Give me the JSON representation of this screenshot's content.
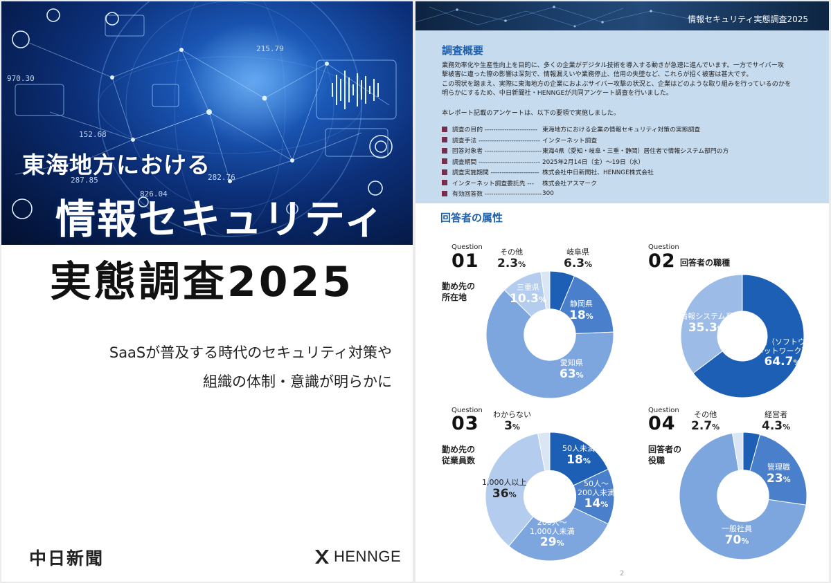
{
  "cover": {
    "title_line1": "東海地方における",
    "title_line2": "情報セキュリティ",
    "title_line3": "実態調査2025",
    "subtitle_line1": "SaaSが普及する時代のセキュリティ対策や",
    "subtitle_line2": "組織の体制・意識が明らかに",
    "publisher1": "中日新聞",
    "publisher2": "HENNGE",
    "bg_numbers": [
      "970.30",
      "287.85",
      "826.04",
      "215.79",
      "282.76",
      "152.68"
    ]
  },
  "page2": {
    "header_title": "情報セキュリティ実態調査2025",
    "summary_heading": "調査概要",
    "summary_lines": [
      "業務効率化や生産性向上を目的に、多くの企業がデジタル技術を導入する動きが急速に進んでいます。一方でサイバー攻",
      "撃被害に遭った際の影響は深刻で、情報漏えいや業務停止、信用の失墜など、これらが招く被害は甚大です。",
      "この現状を踏まえ、実際に東海地方の企業におよぶサイバー攻撃の状況と、企業はどのような取り組みを行っているのかを",
      "明らかにするため、中日新聞社・HENNGEが共同アンケート調査を行いました。"
    ],
    "summary_lead": "本レポート記載のアンケートは、以下の要領で実施しました。",
    "summary_items": [
      {
        "label": "調査の目的 ------------------------",
        "value": "東海地方における企業の情報セキュリティ対策の実態調査"
      },
      {
        "label": "調査手法 ----------------------------",
        "value": "インターネット調査"
      },
      {
        "label": "回答対象者 --------------------------",
        "value": "東海4県（愛知・岐阜・三重・静岡）居住者で情報システム部門の方"
      },
      {
        "label": "調査期間 ----------------------------",
        "value": "2025年2月14日（金）〜19日（水）"
      },
      {
        "label": "調査実施期間 ----------------------",
        "value": "株式会社中日新聞社、HENNGE株式会社"
      },
      {
        "label": "インターネット調査委託先 ---",
        "value": "株式会社アスマーク"
      },
      {
        "label": "有効回答数 --------------------------",
        "value": "300"
      }
    ],
    "attr_heading": "回答者の属性",
    "page_number": "2"
  },
  "questions": [
    {
      "question_word": "Question",
      "number": "01",
      "title_lines": [
        "勤め先の",
        "所在地"
      ],
      "slices": [
        {
          "name": "岐阜県",
          "value": 6.3,
          "value_text": "6.3",
          "color": "#1d5fb4",
          "label_color": "dark"
        },
        {
          "name": "静岡県",
          "value": 18,
          "value_text": "18",
          "color": "#4a7fcc",
          "label_color": "light"
        },
        {
          "name": "愛知県",
          "value": 63,
          "value_text": "63",
          "color": "#7ea6de",
          "label_color": "light"
        },
        {
          "name": "三重県",
          "value": 10.3,
          "value_text": "10.3",
          "color": "#b4cdef",
          "label_color": "light"
        },
        {
          "name": "その他",
          "value": 2.3,
          "value_text": "2.3",
          "color": "#dbe6f5",
          "label_color": "dark"
        }
      ]
    },
    {
      "question_word": "Question",
      "number": "02",
      "title_lines": [
        "回答者の職種"
      ],
      "slices": [
        {
          "name": "技術系（ソフトウェア\nネットワーク）",
          "name_line1": "技術系（ソフトウェア",
          "name_line2": "ネットワーク）",
          "value": 64.7,
          "value_text": "64.7",
          "color": "#1d5fb4",
          "label_color": "light"
        },
        {
          "name": "情報システム系",
          "value": 35.3,
          "value_text": "35.3",
          "color": "#9cbbe6",
          "label_color": "light"
        }
      ]
    },
    {
      "question_word": "Question",
      "number": "03",
      "title_lines": [
        "勤め先の",
        "従業員数"
      ],
      "slices": [
        {
          "name": "50人未満",
          "value": 18,
          "value_text": "18",
          "color": "#1d5fb4",
          "label_color": "light"
        },
        {
          "name_line1": "50人〜",
          "name_line2": "200人未満",
          "value": 14,
          "value_text": "14",
          "color": "#4a7fcc",
          "label_color": "light"
        },
        {
          "name_line1": "200人〜",
          "name_line2": "1,000人未満",
          "value": 29,
          "value_text": "29",
          "color": "#7ea6de",
          "label_color": "light"
        },
        {
          "name": "1,000人以上",
          "value": 36,
          "value_text": "36",
          "color": "#b4cdef",
          "label_color": "dark"
        },
        {
          "name": "わからない",
          "value": 3,
          "value_text": "3",
          "color": "#dbe6f5",
          "label_color": "dark"
        }
      ]
    },
    {
      "question_word": "Question",
      "number": "04",
      "title_lines": [
        "回答者の",
        "役職"
      ],
      "slices": [
        {
          "name": "経営者",
          "value": 4.3,
          "value_text": "4.3",
          "color": "#1d5fb4",
          "label_color": "dark"
        },
        {
          "name": "管理職",
          "value": 23,
          "value_text": "23",
          "color": "#4a7fcc",
          "label_color": "light"
        },
        {
          "name": "一般社員",
          "value": 70,
          "value_text": "70",
          "color": "#7ea6de",
          "label_color": "light"
        },
        {
          "name": "その他",
          "value": 2.7,
          "value_text": "2.7",
          "color": "#dbe6f5",
          "label_color": "dark"
        }
      ]
    }
  ],
  "percent_sign": "%"
}
